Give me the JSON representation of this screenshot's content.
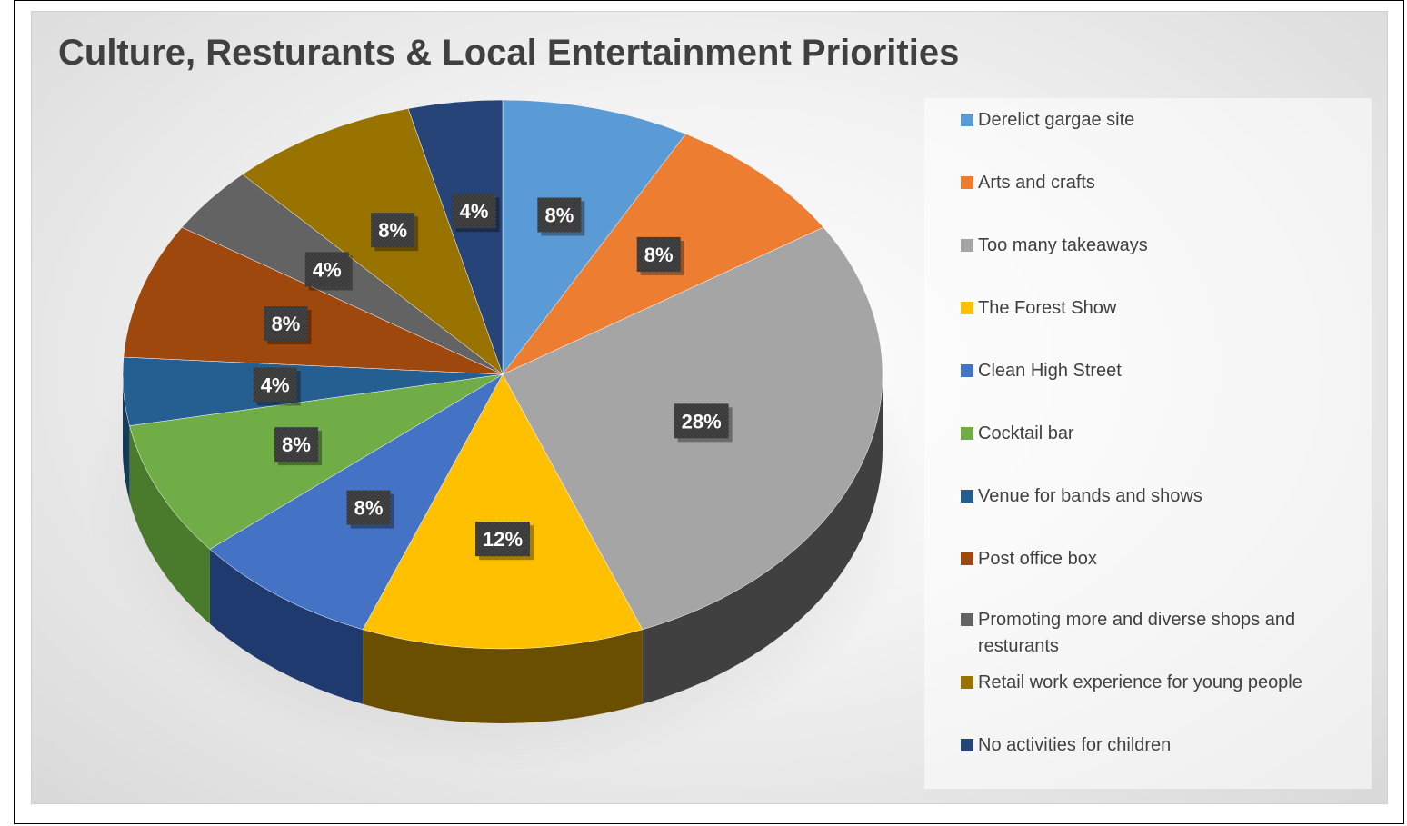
{
  "chart_data": {
    "type": "pie",
    "title": "Culture, Resturants & Local Entertainment Priorities",
    "legend_position": "right",
    "slices": [
      {
        "label": "Derelict gargae site",
        "value": 8,
        "data_label": "8%",
        "color": "#5b9bd5",
        "side_color": "#3b6d99"
      },
      {
        "label": "Arts and crafts",
        "value": 8,
        "data_label": "8%",
        "color": "#ed7d31",
        "side_color": "#a85418"
      },
      {
        "label": "Too many takeaways",
        "value": 28,
        "data_label": "28%",
        "color": "#a5a5a5",
        "side_color": "#404040"
      },
      {
        "label": "The Forest Show",
        "value": 12,
        "data_label": "12%",
        "color": "#ffc000",
        "side_color": "#6b4f00"
      },
      {
        "label": "Clean High Street",
        "value": 8,
        "data_label": "8%",
        "color": "#4472c4",
        "side_color": "#1f3a6e"
      },
      {
        "label": "Cocktail bar",
        "value": 8,
        "data_label": "8%",
        "color": "#70ad47",
        "side_color": "#4a7a2c"
      },
      {
        "label": "Venue for bands and shows",
        "value": 4,
        "data_label": "4%",
        "color": "#255e91",
        "side_color": "#163a5a"
      },
      {
        "label": "Post office box",
        "value": 8,
        "data_label": "8%",
        "color": "#9e480e",
        "side_color": "#6a2f08"
      },
      {
        "label": "Promoting more and diverse shops and resturants",
        "value": 4,
        "data_label": "4%",
        "color": "#636363",
        "side_color": "#3a3a3a"
      },
      {
        "label": "Retail work experience for young people",
        "value": 8,
        "data_label": "8%",
        "color": "#997300",
        "side_color": "#6a4f00"
      },
      {
        "label": "No activities for children",
        "value": 4,
        "data_label": "4%",
        "color": "#264478",
        "side_color": "#142a4e"
      }
    ]
  }
}
